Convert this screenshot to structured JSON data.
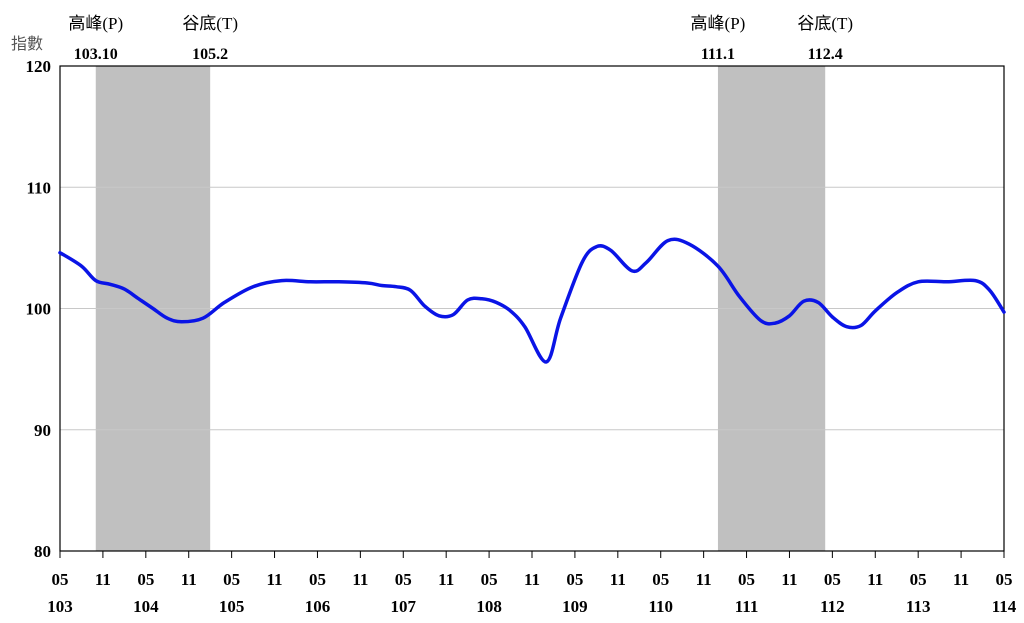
{
  "chart_data": {
    "type": "line",
    "ylabel": "指數",
    "ylim": [
      80,
      120
    ],
    "yticks": [
      "120",
      "110",
      "100",
      "90",
      "80"
    ],
    "grid": true,
    "x_axis": {
      "month_labels": [
        "05",
        "11",
        "05",
        "11",
        "05",
        "11",
        "05",
        "11",
        "05",
        "11",
        "05",
        "11",
        "05",
        "11",
        "05",
        "11",
        "05",
        "11",
        "05",
        "11",
        "05",
        "11",
        "05"
      ],
      "year_labels": [
        "103",
        "104",
        "105",
        "106",
        "107",
        "108",
        "109",
        "110",
        "111",
        "112",
        "113",
        "114"
      ]
    },
    "shaded_periods": [
      {
        "peak_label": "高峰(P)",
        "trough_label": "谷底(T)",
        "peak_date": "103.10",
        "trough_date": "105.2"
      },
      {
        "peak_label": "高峰(P)",
        "trough_label": "谷底(T)",
        "peak_date": "111.1",
        "trough_date": "112.4"
      }
    ],
    "series": [
      {
        "color": "#0a14e6",
        "x": [
          "103.05",
          "103.08",
          "103.10",
          "103.12",
          "104.02",
          "104.04",
          "104.06",
          "104.08",
          "104.10",
          "105.01",
          "105.04",
          "105.08",
          "105.12",
          "106.04",
          "106.08",
          "106.12",
          "107.02",
          "107.04",
          "107.06",
          "107.08",
          "107.10",
          "107.12",
          "108.02",
          "108.04",
          "108.06",
          "108.08",
          "108.10",
          "109.01",
          "109.03",
          "109.06",
          "109.08",
          "109.10",
          "110.01",
          "110.03",
          "110.06",
          "110.09",
          "111.01",
          "111.04",
          "111.07",
          "111.09",
          "111.11",
          "112.01",
          "112.03",
          "112.05",
          "112.07",
          "112.09",
          "112.11",
          "113.02",
          "113.05",
          "113.09",
          "114.01",
          "114.03",
          "114.05"
        ],
        "values": [
          104.6,
          103.5,
          102.3,
          102.0,
          101.6,
          100.8,
          100.0,
          99.2,
          98.9,
          99.2,
          100.5,
          101.8,
          102.3,
          102.2,
          102.2,
          102.1,
          101.9,
          101.8,
          101.5,
          100.2,
          99.4,
          99.5,
          100.7,
          100.8,
          100.5,
          99.8,
          98.5,
          95.6,
          99.2,
          103.8,
          105.1,
          104.8,
          103.1,
          103.8,
          105.6,
          105.3,
          103.5,
          101.0,
          99.0,
          98.8,
          99.4,
          100.6,
          100.5,
          99.3,
          98.5,
          98.6,
          99.8,
          101.3,
          102.2,
          102.2,
          102.3,
          101.5,
          99.7
        ]
      }
    ]
  }
}
